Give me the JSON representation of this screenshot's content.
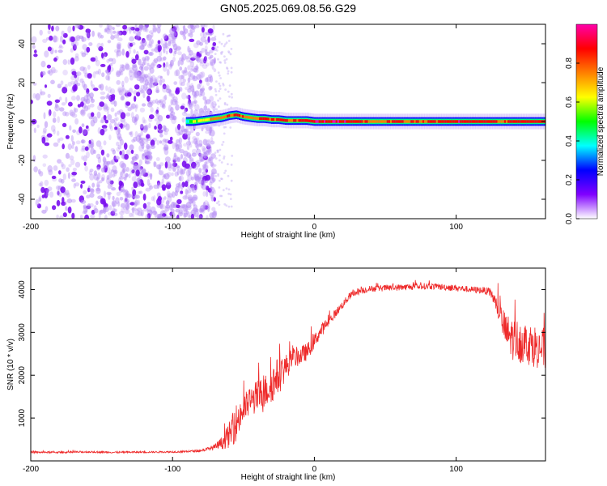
{
  "title": "GN05.2025.069.08.56.G29",
  "chart_data": [
    {
      "type": "heatmap",
      "xlabel": "Height of straight line (km)",
      "ylabel": "Frequency (Hz)",
      "xlim": [
        -200,
        163
      ],
      "ylim": [
        -50,
        50
      ],
      "xticks": [
        -200,
        -100,
        0,
        100
      ],
      "yticks": [
        -40,
        -20,
        0,
        20,
        40
      ],
      "grid": false,
      "noise_region": {
        "x": [
          -200,
          -70
        ],
        "y": [
          -50,
          50
        ],
        "level": 0.1
      },
      "signal_line": {
        "x": [
          -90,
          -85,
          -80,
          -75,
          -70,
          -65,
          -60,
          -55,
          -50,
          -45,
          -40,
          -35,
          -30,
          -25,
          -20,
          -15,
          -10,
          -5,
          0,
          10,
          20,
          30,
          40,
          50,
          60,
          70,
          80,
          90,
          100,
          110,
          120,
          130,
          140,
          150,
          163
        ],
        "frequency": [
          0,
          0,
          0.5,
          1,
          1.5,
          2,
          3,
          3.5,
          2.5,
          2,
          1.5,
          1.5,
          1,
          1,
          0.5,
          0.5,
          0.5,
          0.5,
          0,
          0,
          0,
          0,
          0,
          0,
          0,
          0,
          0,
          0,
          0,
          0,
          0,
          0,
          0,
          0,
          0
        ],
        "amplitude": [
          0.3,
          0.5,
          0.55,
          0.65,
          0.7,
          0.7,
          0.8,
          0.85,
          0.75,
          0.75,
          0.75,
          0.8,
          0.8,
          0.85,
          0.8,
          0.8,
          0.85,
          0.85,
          0.9,
          0.9,
          0.95,
          0.85,
          0.75,
          0.75,
          0.8,
          0.8,
          0.8,
          0.85,
          0.9,
          0.9,
          0.85,
          0.8,
          0.8,
          0.85,
          0.9
        ]
      },
      "colorbar": {
        "label": "Normalized spectral amplitude",
        "range": [
          0,
          1
        ],
        "ticks": [
          "0.0",
          "0.2",
          "0.4",
          "0.6",
          "0.8"
        ],
        "colors": [
          "#ffffff",
          "#8000ff",
          "#0000ff",
          "#00ffff",
          "#00ff00",
          "#ffff00",
          "#ff8000",
          "#ff0000",
          "#ff00aa"
        ]
      }
    },
    {
      "type": "line",
      "xlabel": "Height of straight line (km)",
      "ylabel": "SNR (10 * v/v)",
      "xlim": [
        -200,
        163
      ],
      "ylim": [
        0,
        4500
      ],
      "xticks": [
        -200,
        -100,
        0,
        100
      ],
      "yticks": [
        1000,
        2000,
        3000,
        4000
      ],
      "grid": false,
      "color": "#ee2a2a",
      "x": [
        -200,
        -180,
        -160,
        -140,
        -120,
        -100,
        -90,
        -80,
        -75,
        -70,
        -65,
        -60,
        -55,
        -50,
        -45,
        -40,
        -35,
        -30,
        -25,
        -20,
        -15,
        -10,
        -5,
        0,
        5,
        10,
        15,
        20,
        25,
        30,
        40,
        60,
        80,
        100,
        110,
        120,
        125,
        130,
        135,
        140,
        150,
        163
      ],
      "y": [
        200,
        200,
        210,
        200,
        205,
        210,
        220,
        240,
        280,
        320,
        420,
        600,
        900,
        1200,
        1400,
        1500,
        1600,
        1800,
        2000,
        2200,
        2400,
        2450,
        2550,
        2800,
        3050,
        3250,
        3450,
        3650,
        3850,
        3950,
        4020,
        4050,
        4080,
        4040,
        4000,
        3980,
        3900,
        3500,
        3000,
        2850,
        2750,
        2600
      ],
      "spread": [
        40,
        40,
        40,
        40,
        40,
        40,
        50,
        60,
        80,
        150,
        300,
        600,
        900,
        700,
        700,
        800,
        800,
        900,
        900,
        600,
        500,
        450,
        400,
        350,
        300,
        250,
        200,
        180,
        170,
        160,
        150,
        150,
        150,
        150,
        150,
        160,
        250,
        500,
        900,
        1000,
        1000,
        1000
      ]
    }
  ]
}
